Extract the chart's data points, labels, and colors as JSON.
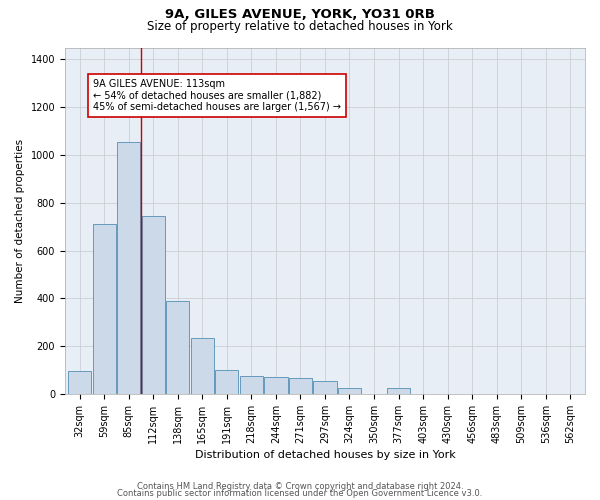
{
  "title": "9A, GILES AVENUE, YORK, YO31 0RB",
  "subtitle": "Size of property relative to detached houses in York",
  "xlabel": "Distribution of detached houses by size in York",
  "ylabel": "Number of detached properties",
  "footnote1": "Contains HM Land Registry data © Crown copyright and database right 2024.",
  "footnote2": "Contains public sector information licensed under the Open Government Licence v3.0.",
  "categories": [
    "32sqm",
    "59sqm",
    "85sqm",
    "112sqm",
    "138sqm",
    "165sqm",
    "191sqm",
    "218sqm",
    "244sqm",
    "271sqm",
    "297sqm",
    "324sqm",
    "350sqm",
    "377sqm",
    "403sqm",
    "430sqm",
    "456sqm",
    "483sqm",
    "509sqm",
    "536sqm",
    "562sqm"
  ],
  "values": [
    95,
    710,
    1055,
    745,
    390,
    235,
    100,
    75,
    70,
    65,
    55,
    25,
    0,
    25,
    0,
    0,
    0,
    0,
    0,
    0,
    0
  ],
  "bar_color": "#ccd9e8",
  "bar_edge_color": "#6699bb",
  "bar_linewidth": 0.7,
  "grid_color": "#c8c8d0",
  "bg_color": "#e8eef5",
  "annotation_line1": "9A GILES AVENUE: 113sqm",
  "annotation_line2": "← 54% of detached houses are smaller (1,882)",
  "annotation_line3": "45% of semi-detached houses are larger (1,567) →",
  "vline_x": 2.5,
  "vline_color": "#cc0000",
  "ylim": [
    0,
    1450
  ],
  "yticks": [
    0,
    200,
    400,
    600,
    800,
    1000,
    1200,
    1400
  ],
  "title_fontsize": 9.5,
  "subtitle_fontsize": 8.5,
  "xlabel_fontsize": 8,
  "ylabel_fontsize": 7.5,
  "tick_fontsize": 7,
  "annot_fontsize": 7,
  "footnote_fontsize": 6
}
